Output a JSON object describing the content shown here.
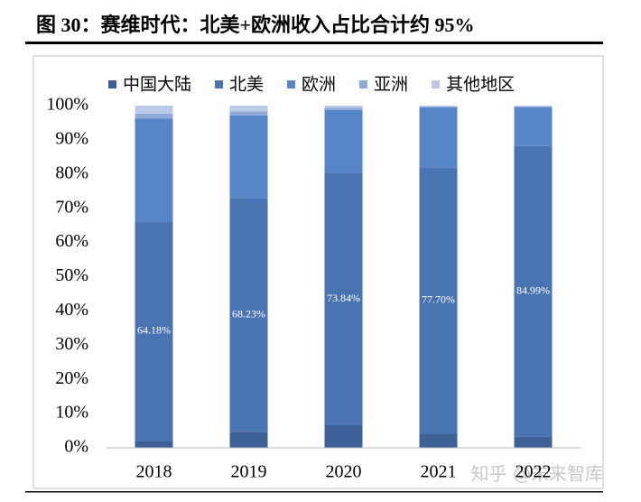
{
  "chart_data": {
    "type": "stacked_bar",
    "title": "图 30：赛维时代：北美+欧洲收入占比合计约 95%",
    "watermark": "知乎 @未来智库",
    "categories": [
      "2018",
      "2019",
      "2020",
      "2021",
      "2022"
    ],
    "series": [
      {
        "name": "中国大陆",
        "color": "#3d6096",
        "values": [
          2.0,
          4.7,
          6.6,
          4.2,
          3.2
        ]
      },
      {
        "name": "北美",
        "color": "#4a73b2",
        "values": [
          64.18,
          68.23,
          73.84,
          77.7,
          84.99
        ],
        "value_labels": [
          "64.18%",
          "68.23%",
          "73.84%",
          "77.70%",
          "84.99%"
        ]
      },
      {
        "name": "欧洲",
        "color": "#5686c8",
        "values": [
          30.0,
          24.2,
          18.3,
          17.6,
          11.3
        ]
      },
      {
        "name": "亚洲",
        "color": "#8ca8d6",
        "values": [
          1.5,
          1.2,
          0.6,
          0.2,
          0.3
        ]
      },
      {
        "name": "其他地区",
        "color": "#bac9e7",
        "values": [
          2.32,
          1.67,
          0.66,
          0.3,
          0.21
        ]
      }
    ],
    "ylim": [
      0,
      100
    ],
    "yticks": [
      {
        "value": 0,
        "label": "0%"
      },
      {
        "value": 10,
        "label": "10%"
      },
      {
        "value": 20,
        "label": "20%"
      },
      {
        "value": 30,
        "label": "30%"
      },
      {
        "value": 40,
        "label": "40%"
      },
      {
        "value": 50,
        "label": "50%"
      },
      {
        "value": 60,
        "label": "60%"
      },
      {
        "value": 70,
        "label": "70%"
      },
      {
        "value": 80,
        "label": "80%"
      },
      {
        "value": 90,
        "label": "90%"
      },
      {
        "value": 100,
        "label": "100%"
      }
    ],
    "legend": "top"
  }
}
